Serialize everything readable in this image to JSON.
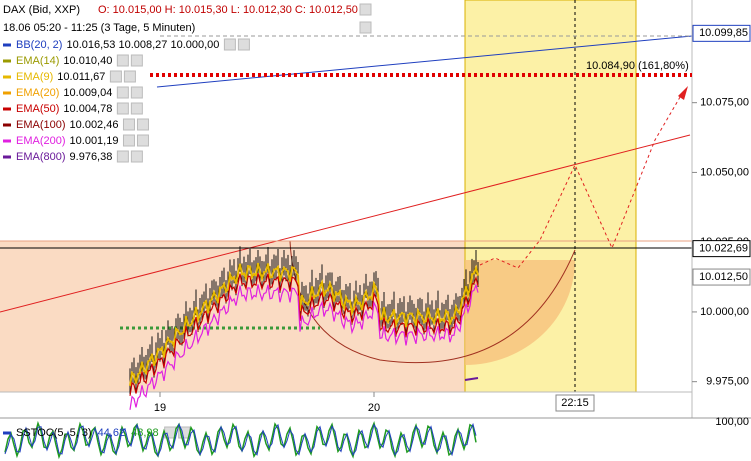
{
  "header": {
    "title": "DAX (Bid, XXP)",
    "ohlc": "O: 10.015,00  H: 10.015,30  L: 10.012,30  C: 10.012,50",
    "range": "18.06 05:20 - 11:25 (3 Tage, 5 Minuten)"
  },
  "indicators": [
    {
      "name": "BB(20, 2)",
      "values": "10.016,53  10.008,27  10.000,00",
      "color": "#1f3fbf"
    },
    {
      "name": "EMA(14)",
      "values": "10.010,40",
      "color": "#9a9a00"
    },
    {
      "name": "EMA(9)",
      "values": "10.011,67",
      "color": "#e6b800"
    },
    {
      "name": "EMA(20)",
      "values": "10.009,04",
      "color": "#f0a000"
    },
    {
      "name": "EMA(50)",
      "values": "10.004,78",
      "color": "#c80000"
    },
    {
      "name": "EMA(100)",
      "values": "10.002,46",
      "color": "#8b0000"
    },
    {
      "name": "EMA(200)",
      "values": "10.001,19",
      "color": "#e020e0"
    },
    {
      "name": "EMA(800)",
      "values": "9.976,38",
      "color": "#6a1a9a"
    }
  ],
  "price_axis": {
    "ylim": [
      9971.3,
      10111.8
    ],
    "ticks": [
      {
        "value": 10075,
        "label": "10.075,00"
      },
      {
        "value": 10050,
        "label": "10.050,00"
      },
      {
        "value": 10025,
        "label": "10.025,00"
      },
      {
        "value": 10000,
        "label": "10.000,00"
      },
      {
        "value": 9975,
        "label": "9.975,00"
      }
    ],
    "markers": [
      {
        "value": 10099.85,
        "label": "10.099,85",
        "color": "#1f3fbf"
      },
      {
        "value": 10022.69,
        "label": "10.022,69",
        "color": "#000000"
      },
      {
        "value": 10012.5,
        "label": "10.012,50",
        "color": "#888888"
      }
    ]
  },
  "fib_target": {
    "value": 10084.9,
    "label": "10.084,90 (161,80%)"
  },
  "time_axis": {
    "labels": [
      "19",
      "20"
    ],
    "cursor": "22:15"
  },
  "oscillator": {
    "name": "SSTOC(5, 5, 3)",
    "values": [
      "44,62",
      "48,98"
    ],
    "tick": "100,00"
  }
}
